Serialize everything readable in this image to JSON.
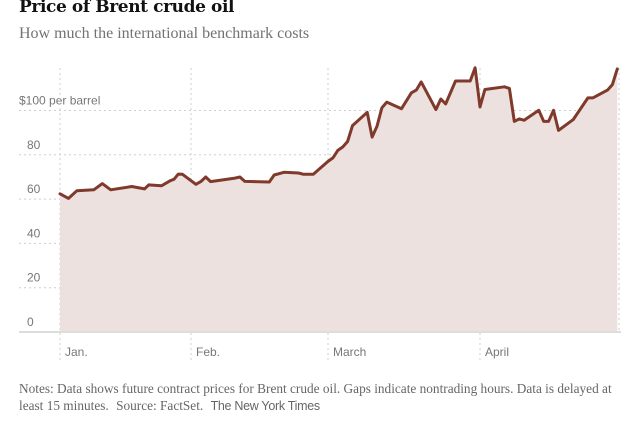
{
  "header": {
    "title": "Price of Brent crude oil",
    "subtitle": "How much the international benchmark costs"
  },
  "footer": {
    "notes": "Notes: Data shows future contract prices for Brent crude oil. Gaps indicate nontrading hours. Data is delayed at least 15 minutes.",
    "source": "Source: FactSet.",
    "credit": "The New York Times"
  },
  "colors": {
    "line": "#7f3a2c",
    "fill": "#ede1df",
    "grid": "#cfcfcf"
  },
  "chart_data": {
    "type": "area",
    "title": "Price of Brent crude oil",
    "subtitle": "How much the international benchmark costs",
    "xlabel": "",
    "ylabel": "",
    "ylim": [
      0,
      120
    ],
    "grid": true,
    "y_ticks": [
      {
        "value": 0,
        "label": "0"
      },
      {
        "value": 20,
        "label": "20"
      },
      {
        "value": 40,
        "label": "40"
      },
      {
        "value": 60,
        "label": "60"
      },
      {
        "value": 80,
        "label": "80"
      },
      {
        "value": 100,
        "label": "$100 per barrel"
      }
    ],
    "x_ticks": [
      {
        "value": "01-01",
        "label": "Jan."
      },
      {
        "value": "02-01",
        "label": "Feb."
      },
      {
        "value": "03-01",
        "label": "March"
      },
      {
        "value": "04-01",
        "label": "April"
      }
    ],
    "series": [
      {
        "x": [
          "01-01",
          "01-03",
          "01-05",
          "01-09",
          "01-11",
          "01-13",
          "01-18",
          "01-21",
          "01-22",
          "01-25",
          "01-27",
          "01-28",
          "01-29",
          "01-30",
          "02-02",
          "02-03",
          "02-04",
          "02-05",
          "02-10",
          "02-11",
          "02-12",
          "02-17",
          "02-18",
          "02-20",
          "02-23",
          "02-24",
          "02-26",
          "03-01",
          "03-02",
          "03-03",
          "03-04",
          "03-05",
          "03-06",
          "03-09",
          "03-10",
          "03-11",
          "03-12",
          "03-13",
          "03-16",
          "03-18",
          "03-19",
          "03-20",
          "03-23",
          "03-24",
          "03-25",
          "03-27",
          "03-30",
          "03-31",
          "04-01",
          "04-02",
          "04-06",
          "04-07",
          "04-08",
          "04-09",
          "04-10",
          "04-13",
          "04-14",
          "04-15",
          "04-16",
          "04-17",
          "04-20",
          "04-23",
          "04-24",
          "04-27",
          "04-28",
          "04-29"
        ],
        "y": [
          62.4,
          60.3,
          63.8,
          64.2,
          67,
          64.2,
          65.7,
          64.6,
          66.4,
          66,
          68.2,
          69,
          71.3,
          71.2,
          66.7,
          67.9,
          70,
          67.9,
          69.5,
          70,
          68,
          67.7,
          70.9,
          72.1,
          71.8,
          71.2,
          71.2,
          77,
          78.6,
          82,
          83.5,
          86,
          93.2,
          99.2,
          88,
          92.9,
          101.2,
          103.8,
          100.8,
          108,
          109.2,
          112.9,
          100.4,
          105.2,
          103,
          113.3,
          113.3,
          119.3,
          101.6,
          109.5,
          110.7,
          110,
          95.1,
          96.2,
          95.6,
          100.1,
          95.1,
          95.1,
          100.1,
          91,
          95.9,
          105.7,
          105.7,
          109.2,
          111.7,
          118.8
        ]
      }
    ]
  }
}
